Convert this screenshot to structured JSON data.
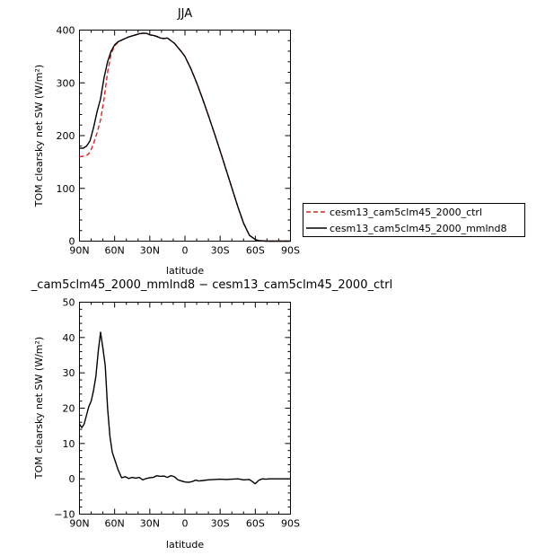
{
  "chart_data": [
    {
      "type": "line",
      "title": "JJA",
      "xlabel": "latitude",
      "ylabel": "TOM clearsky net SW (W/m²)",
      "xlim": [
        90,
        -90
      ],
      "ylim": [
        0,
        400
      ],
      "x_ticks": [
        90,
        60,
        30,
        0,
        -30,
        -60,
        -90
      ],
      "x_tick_labels": [
        "90N",
        "60N",
        "30N",
        "0",
        "30S",
        "60S",
        "90S"
      ],
      "y_ticks": [
        0,
        100,
        200,
        300,
        400
      ],
      "y_tick_labels": [
        "0",
        "100",
        "200",
        "300",
        "400"
      ],
      "legend": {
        "placement": "right",
        "entries": [
          "cesm13_cam5clm45_2000_ctrl",
          "cesm13_cam5clm45_2000_mmlnd8"
        ]
      },
      "series": [
        {
          "name": "cesm13_cam5clm45_2000_ctrl",
          "color": "#e8201b",
          "dash": "dashed",
          "x": [
            90,
            87,
            84,
            81,
            78,
            75,
            72,
            69,
            66,
            63,
            60,
            57,
            54,
            51,
            48,
            45,
            42,
            39,
            36,
            33,
            30,
            27,
            24,
            21,
            18,
            15,
            12,
            9,
            6,
            3,
            0,
            -5,
            -10,
            -15,
            -20,
            -25,
            -30,
            -35,
            -40,
            -45,
            -50,
            -55,
            -60,
            -63,
            -66,
            -69,
            -72,
            -75,
            -78,
            -81,
            -84,
            -87,
            -90
          ],
          "values": [
            160,
            161,
            162,
            168,
            185,
            205,
            230,
            270,
            320,
            355,
            370,
            377,
            381,
            384,
            387,
            389,
            391,
            393,
            394,
            394,
            391,
            390,
            388,
            385,
            384,
            385,
            380,
            375,
            367,
            359,
            350,
            327,
            300,
            270,
            238,
            205,
            171,
            136,
            101,
            66,
            34,
            11,
            3,
            1,
            0.5,
            0,
            0,
            0,
            0,
            0,
            0,
            0,
            0
          ]
        },
        {
          "name": "cesm13_cam5clm45_2000_mmlnd8",
          "color": "#000000",
          "dash": "solid",
          "x": [
            90,
            87,
            84,
            81,
            78,
            75,
            72,
            69,
            66,
            63,
            60,
            57,
            54,
            51,
            48,
            45,
            42,
            39,
            36,
            33,
            30,
            27,
            24,
            21,
            18,
            15,
            12,
            9,
            6,
            3,
            0,
            -5,
            -10,
            -15,
            -20,
            -25,
            -30,
            -35,
            -40,
            -45,
            -50,
            -55,
            -60,
            -63,
            -66,
            -69,
            -72,
            -75,
            -78,
            -81,
            -84,
            -87,
            -90
          ],
          "values": [
            176,
            176,
            180,
            190,
            215,
            245,
            270,
            310,
            340,
            360,
            372,
            378,
            381,
            384,
            387,
            389,
            391,
            393,
            394,
            394,
            391,
            390,
            388,
            385,
            384,
            385,
            380,
            375,
            367,
            359,
            350,
            327,
            300,
            270,
            238,
            205,
            171,
            136,
            101,
            66,
            34,
            11,
            3,
            1,
            0.5,
            0,
            0,
            0,
            0,
            0,
            0,
            0,
            0
          ]
        }
      ]
    },
    {
      "type": "line",
      "title": "_cam5clm45_2000_mmlnd8 − cesm13_cam5clm45_2000_ctrl",
      "xlabel": "latitude",
      "ylabel": "TOM clearsky net SW (W/m²)",
      "xlim": [
        90,
        -90
      ],
      "ylim": [
        -10,
        50
      ],
      "x_ticks": [
        90,
        60,
        30,
        0,
        -30,
        -60,
        -90
      ],
      "x_tick_labels": [
        "90N",
        "60N",
        "30N",
        "0",
        "30S",
        "60S",
        "90S"
      ],
      "y_ticks": [
        -10,
        0,
        10,
        20,
        30,
        40,
        50
      ],
      "y_tick_labels": [
        "−10",
        "0",
        "10",
        "20",
        "30",
        "40",
        "50"
      ],
      "series": [
        {
          "color": "#000000",
          "dash": "solid",
          "x": [
            90,
            88,
            86,
            84,
            82,
            80,
            78,
            76,
            74,
            72,
            70,
            68,
            66,
            64,
            62,
            60,
            57,
            54,
            51,
            48,
            45,
            42,
            39,
            36,
            33,
            30,
            27,
            24,
            21,
            18,
            15,
            12,
            9,
            6,
            3,
            0,
            -3,
            -6,
            -9,
            -12,
            -15,
            -20,
            -25,
            -30,
            -35,
            -40,
            -45,
            -50,
            -55,
            -60,
            -63,
            -66,
            -69,
            -72,
            -75,
            -78,
            -81,
            -84,
            -87,
            -90
          ],
          "values": [
            15.5,
            14.5,
            15.5,
            18,
            20.5,
            22,
            25,
            29,
            36,
            41.5,
            37,
            32,
            20,
            12,
            7.5,
            5.5,
            2.5,
            0.3,
            0.6,
            0.1,
            0.4,
            0.2,
            0.4,
            -0.3,
            0.1,
            0.3,
            0.4,
            0.9,
            0.7,
            0.8,
            0.4,
            0.9,
            0.6,
            -0.3,
            -0.6,
            -0.9,
            -1.0,
            -0.8,
            -0.4,
            -0.6,
            -0.5,
            -0.3,
            -0.2,
            -0.1,
            -0.2,
            -0.1,
            0,
            -0.3,
            -0.2,
            -1.4,
            -0.4,
            0,
            -0.1,
            0,
            0,
            0,
            0,
            0,
            0,
            0
          ]
        }
      ]
    }
  ]
}
